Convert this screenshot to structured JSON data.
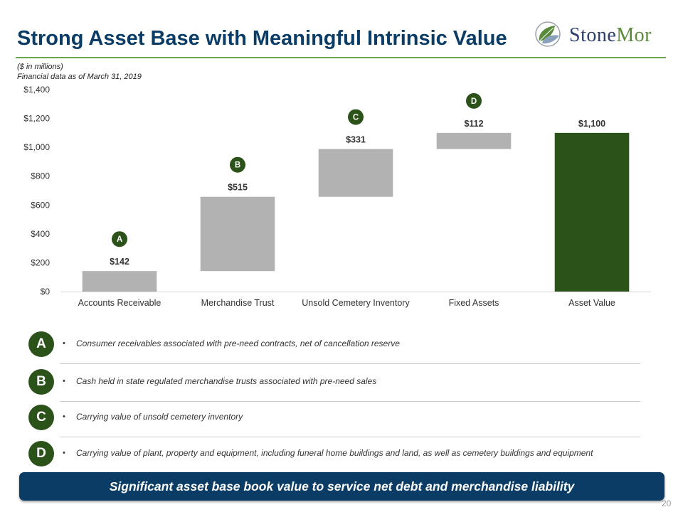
{
  "header": {
    "title": "Strong Asset Base with Meaningful Intrinsic Value",
    "logo_text_a": "Stone",
    "logo_text_b": "Mor",
    "units": "($ in millions)",
    "as_of": "Financial data as of March 31, 2019"
  },
  "colors": {
    "title": "#0b3c65",
    "accent_green": "#6aa84f",
    "dark_green": "#2b5219",
    "bar_gray": "#b2b2b2",
    "banner": "#0b3c65"
  },
  "chart_data": {
    "type": "bar",
    "subtype": "waterfall",
    "categories": [
      "Accounts Receivable",
      "Merchandise Trust",
      "Unsold Cemetery Inventory",
      "Fixed Assets",
      "Asset Value"
    ],
    "values": [
      142,
      515,
      331,
      112,
      1100
    ],
    "data_labels": [
      "$142",
      "$515",
      "$331",
      "$112",
      "$1,100"
    ],
    "markers": [
      "A",
      "B",
      "C",
      "D",
      ""
    ],
    "is_total": [
      false,
      false,
      false,
      false,
      true
    ],
    "ylim": [
      0,
      1400
    ],
    "yticks": [
      0,
      200,
      400,
      600,
      800,
      1000,
      1200,
      1400
    ],
    "ytick_labels": [
      "$0",
      "$200",
      "$400",
      "$600",
      "$800",
      "$1,000",
      "$1,200",
      "$1,400"
    ],
    "grid": false,
    "legend": "none"
  },
  "legend": [
    {
      "letter": "A",
      "bullet": "•",
      "text": "Consumer receivables associated with pre-need contracts, net of cancellation reserve"
    },
    {
      "letter": "B",
      "bullet": "•",
      "text": "Cash held in state regulated merchandise trusts associated with pre-need sales"
    },
    {
      "letter": "C",
      "bullet": "•",
      "text": "Carrying value of unsold cemetery inventory"
    },
    {
      "letter": "D",
      "bullet": "•",
      "text": "Carrying value of plant, property and equipment, including funeral home buildings and land, as well as cemetery buildings and equipment"
    }
  ],
  "banner": {
    "text": "Significant asset base book value to service net debt and merchandise liability"
  },
  "page_number": "20"
}
